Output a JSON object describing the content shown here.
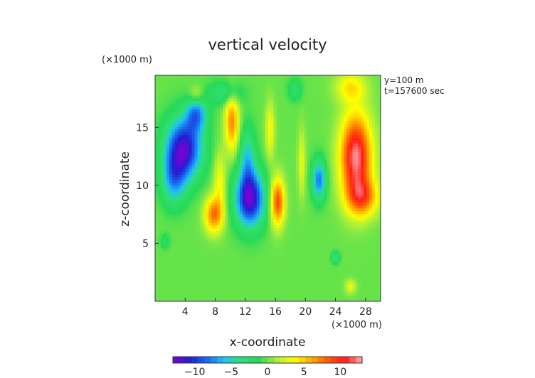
{
  "chart_data": {
    "type": "heatmap",
    "title": "vertical velocity",
    "xlabel": "x-coordinate",
    "ylabel": "z-coordinate",
    "x_unit": "(×1000 m)",
    "y_unit": "(×1000 m)",
    "info_lines": [
      "y=100 m",
      "t=157600 sec"
    ],
    "xlim": [
      0,
      30
    ],
    "ylim": [
      0,
      19.5
    ],
    "x_ticks": [
      4,
      8,
      12,
      16,
      20,
      24,
      28
    ],
    "y_ticks": [
      5,
      10,
      15
    ],
    "color_range": [
      -13,
      13
    ],
    "colorbar_ticks": [
      -10,
      -5,
      0,
      5,
      10
    ],
    "colormap": [
      "#7d00d4",
      "#2020d0",
      "#1a6cf0",
      "#20c4f4",
      "#30e070",
      "#26d858",
      "#a8ee3c",
      "#ffff00",
      "#ffb000",
      "#ff5a00",
      "#ff1a1a",
      "#ffb0b0"
    ],
    "features": [
      {
        "x": 3.8,
        "z": 13.2,
        "sx": 2.4,
        "sz": 2.6,
        "value": -12
      },
      {
        "x": 2.5,
        "z": 10.5,
        "sx": 1.6,
        "sz": 2.2,
        "value": -6
      },
      {
        "x": 5.5,
        "z": 16.2,
        "sx": 1.4,
        "sz": 1.5,
        "value": -7
      },
      {
        "x": 12.6,
        "z": 8.9,
        "sx": 1.9,
        "sz": 2.4,
        "value": -12.5
      },
      {
        "x": 12.3,
        "z": 12.5,
        "sx": 1.0,
        "sz": 2.6,
        "value": -5
      },
      {
        "x": 21.8,
        "z": 10.5,
        "sx": 0.9,
        "sz": 1.7,
        "value": -8
      },
      {
        "x": 9.3,
        "z": 18.0,
        "sx": 2.2,
        "sz": 1.0,
        "value": -3.5
      },
      {
        "x": 18.6,
        "z": 18.3,
        "sx": 0.9,
        "sz": 0.9,
        "value": -3
      },
      {
        "x": 24.0,
        "z": 3.8,
        "sx": 0.5,
        "sz": 0.5,
        "value": -4
      },
      {
        "x": 26.7,
        "z": 12.5,
        "sx": 2.0,
        "sz": 3.6,
        "value": 12.5
      },
      {
        "x": 27.6,
        "z": 9.0,
        "sx": 2.0,
        "sz": 1.6,
        "value": 7
      },
      {
        "x": 16.3,
        "z": 8.6,
        "sx": 0.9,
        "sz": 2.0,
        "value": 9
      },
      {
        "x": 10.2,
        "z": 15.5,
        "sx": 0.9,
        "sz": 2.4,
        "value": 7
      },
      {
        "x": 7.8,
        "z": 7.5,
        "sx": 1.2,
        "sz": 1.5,
        "value": 7.5
      },
      {
        "x": 5.5,
        "z": 17.8,
        "sx": 1.0,
        "sz": 0.8,
        "value": 3
      },
      {
        "x": 15.3,
        "z": 14.8,
        "sx": 0.6,
        "sz": 2.4,
        "value": 3.5
      },
      {
        "x": 19.5,
        "z": 12.0,
        "sx": 0.5,
        "sz": 2.8,
        "value": 3
      },
      {
        "x": 8.6,
        "z": 10.2,
        "sx": 0.8,
        "sz": 2.6,
        "value": 3.5
      },
      {
        "x": 26.0,
        "z": 18.5,
        "sx": 2.0,
        "sz": 1.2,
        "value": 4
      },
      {
        "x": 26.0,
        "z": 1.3,
        "sx": 0.7,
        "sz": 0.6,
        "value": 3
      },
      {
        "x": 1.3,
        "z": 5.2,
        "sx": 0.6,
        "sz": 0.6,
        "value": -2.5
      }
    ]
  }
}
